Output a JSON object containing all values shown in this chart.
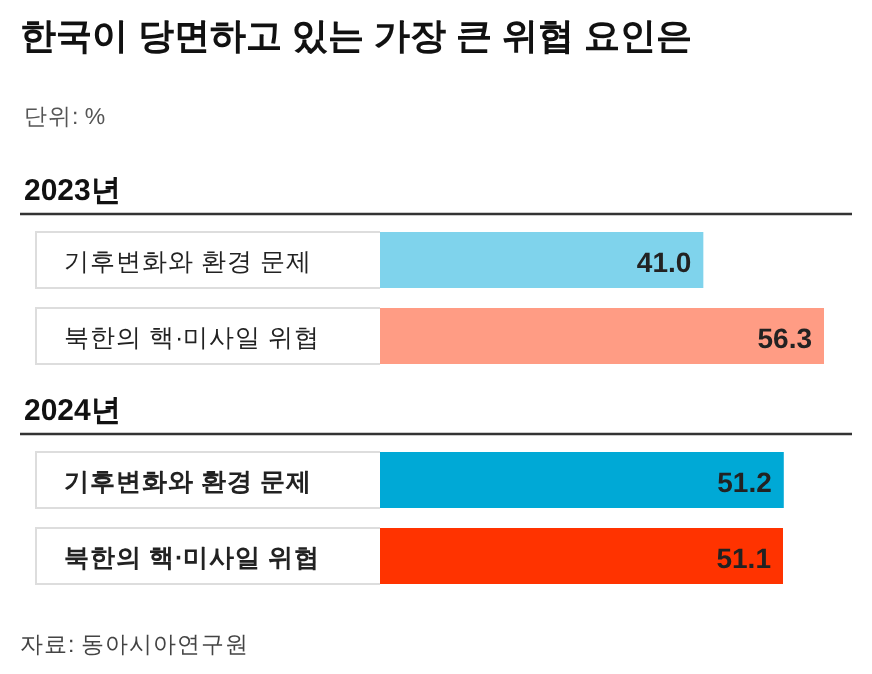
{
  "chart_data": [
    {
      "type": "bar",
      "orientation": "horizontal",
      "title": "한국이 당면하고 있는 가장 큰 위협 요인은",
      "subtitle": "단위: %",
      "annotations": [
        "2023년"
      ],
      "categories": [
        "기후변화와 환경 문제",
        "북한의 핵·미사일 위협"
      ],
      "values": [
        41.0,
        56.3
      ],
      "value_labels": [
        "41.0",
        "56.3"
      ],
      "colors": [
        "#7fd3ec",
        "#ff9c84"
      ]
    },
    {
      "type": "bar",
      "orientation": "horizontal",
      "annotations": [
        "2024년",
        "자료: 동아시아연구원"
      ],
      "categories": [
        "기후변화와 환경 문제",
        "북한의 핵·미사일 위협"
      ],
      "values": [
        51.2,
        51.1
      ],
      "value_labels": [
        "51.2",
        "51.1"
      ],
      "colors": [
        "#00a9d6",
        "#ff3300"
      ]
    }
  ]
}
